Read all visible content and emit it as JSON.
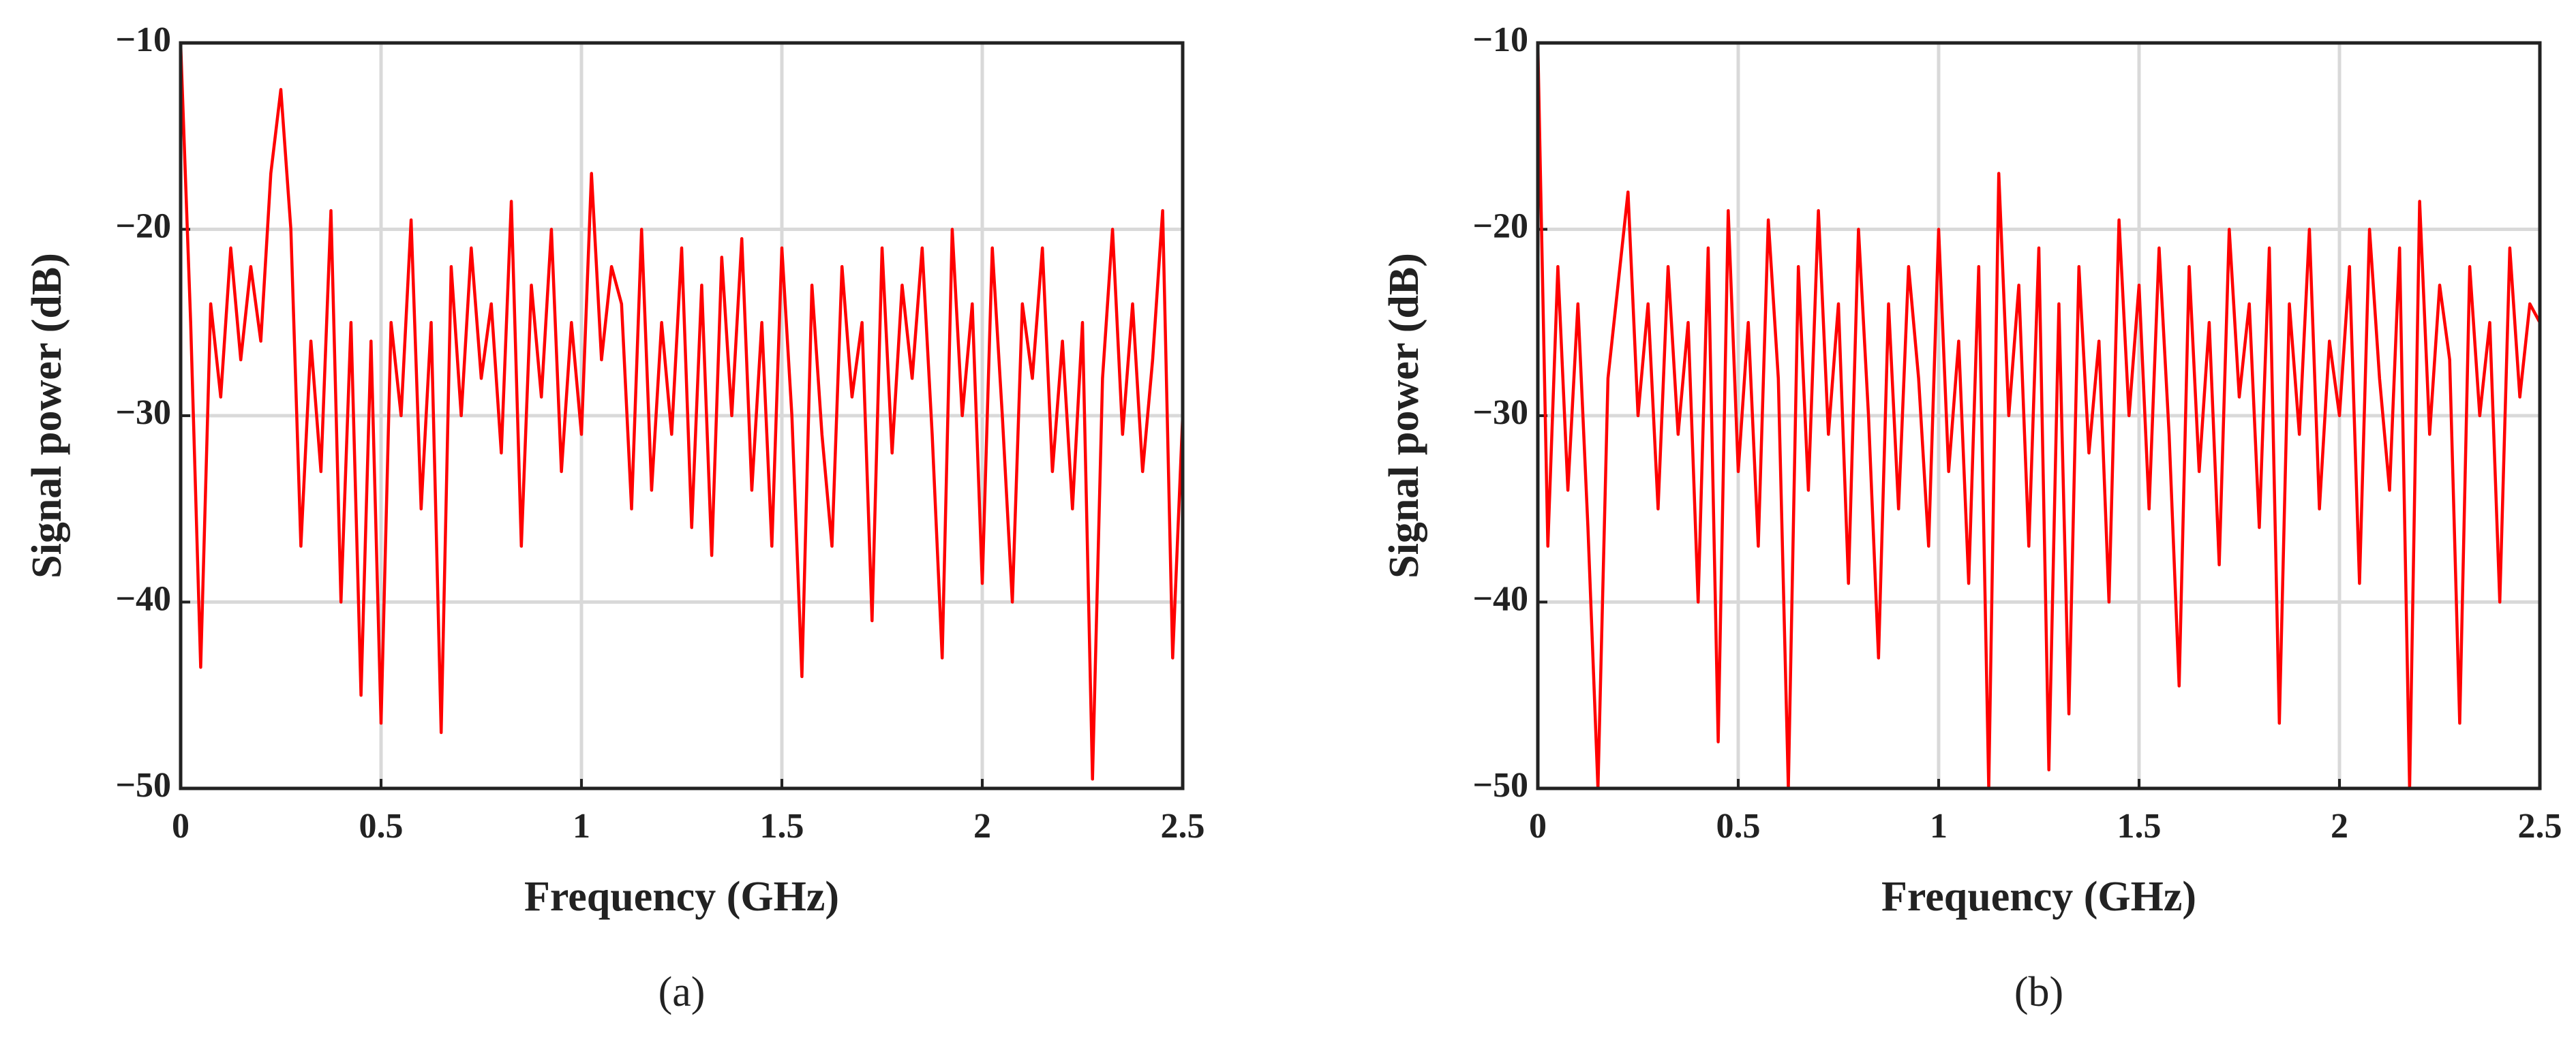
{
  "chart_data": [
    {
      "type": "line",
      "caption": "(a)",
      "x_label": "Frequency (GHz)",
      "y_label": "Signal power (dB)",
      "color": "#ff0000",
      "grid": true,
      "xlim": [
        0,
        2.5
      ],
      "xticks": [
        0,
        0.5,
        1,
        1.5,
        2,
        2.5
      ],
      "ylim": [
        -50,
        -10
      ],
      "yticks": [
        {
          "value": -50,
          "label": "−50"
        },
        {
          "value": -40,
          "label": "−40"
        },
        {
          "value": -30,
          "label": "−30"
        },
        {
          "value": -20,
          "label": "−20"
        },
        {
          "value": -10,
          "label": "−10"
        }
      ],
      "x": [
        0,
        0.025,
        0.05,
        0.075,
        0.1,
        0.125,
        0.15,
        0.175,
        0.2,
        0.225,
        0.25,
        0.275,
        0.3,
        0.325,
        0.35,
        0.375,
        0.4,
        0.425,
        0.45,
        0.475,
        0.5,
        0.525,
        0.55,
        0.575,
        0.6,
        0.625,
        0.65,
        0.675,
        0.7,
        0.725,
        0.75,
        0.775,
        0.8,
        0.825,
        0.85,
        0.875,
        0.9,
        0.925,
        0.95,
        0.975,
        1,
        1.025,
        1.05,
        1.075,
        1.1,
        1.125,
        1.15,
        1.175,
        1.2,
        1.225,
        1.25,
        1.275,
        1.3,
        1.325,
        1.35,
        1.375,
        1.4,
        1.425,
        1.45,
        1.475,
        1.5,
        1.525,
        1.55,
        1.575,
        1.6,
        1.625,
        1.65,
        1.675,
        1.7,
        1.725,
        1.75,
        1.775,
        1.8,
        1.825,
        1.85,
        1.875,
        1.9,
        1.925,
        1.95,
        1.975,
        2,
        2.025,
        2.05,
        2.075,
        2.1,
        2.125,
        2.15,
        2.175,
        2.2,
        2.225,
        2.25,
        2.275,
        2.3,
        2.325,
        2.35,
        2.375,
        2.4,
        2.425,
        2.45,
        2.475,
        2.5
      ],
      "values": [
        -10,
        -25,
        -43.5,
        -24,
        -29,
        -21,
        -27,
        -22,
        -26,
        -17,
        -12.5,
        -20,
        -37,
        -26,
        -33,
        -19,
        -40,
        -25,
        -45,
        -26,
        -46.5,
        -25,
        -30,
        -19.5,
        -35,
        -25,
        -47,
        -22,
        -30,
        -21,
        -28,
        -24,
        -32,
        -18.5,
        -37,
        -23,
        -29,
        -20,
        -33,
        -25,
        -31,
        -17,
        -27,
        -22,
        -24,
        -35,
        -20,
        -34,
        -25,
        -31,
        -21,
        -36,
        -23,
        -37.5,
        -21.5,
        -30,
        -20.5,
        -34,
        -25,
        -37,
        -21,
        -30,
        -44,
        -23,
        -31,
        -37,
        -22,
        -29,
        -25,
        -41,
        -21,
        -32,
        -23,
        -28,
        -21,
        -31,
        -43,
        -20,
        -30,
        -24,
        -39,
        -21,
        -30,
        -40,
        -24,
        -28,
        -21,
        -33,
        -26,
        -35,
        -25,
        -49.5,
        -28,
        -20,
        -31,
        -24,
        -33,
        -27,
        -19,
        -43,
        -30
      ]
    },
    {
      "type": "line",
      "caption": "(b)",
      "x_label": "Frequency (GHz)",
      "y_label": "Signal power (dB)",
      "color": "#ff0000",
      "grid": true,
      "xlim": [
        0,
        2.5
      ],
      "xticks": [
        0,
        0.5,
        1,
        1.5,
        2,
        2.5
      ],
      "ylim": [
        -50,
        -10
      ],
      "yticks": [
        {
          "value": -50,
          "label": "−50"
        },
        {
          "value": -40,
          "label": "−40"
        },
        {
          "value": -30,
          "label": "−30"
        },
        {
          "value": -20,
          "label": "−20"
        },
        {
          "value": -10,
          "label": "−10"
        }
      ],
      "x": [
        0,
        0.025,
        0.05,
        0.075,
        0.1,
        0.125,
        0.15,
        0.175,
        0.2,
        0.225,
        0.25,
        0.275,
        0.3,
        0.325,
        0.35,
        0.375,
        0.4,
        0.425,
        0.45,
        0.475,
        0.5,
        0.525,
        0.55,
        0.575,
        0.6,
        0.625,
        0.65,
        0.675,
        0.7,
        0.725,
        0.75,
        0.775,
        0.8,
        0.825,
        0.85,
        0.875,
        0.9,
        0.925,
        0.95,
        0.975,
        1,
        1.025,
        1.05,
        1.075,
        1.1,
        1.125,
        1.15,
        1.175,
        1.2,
        1.225,
        1.25,
        1.275,
        1.3,
        1.325,
        1.35,
        1.375,
        1.4,
        1.425,
        1.45,
        1.475,
        1.5,
        1.525,
        1.55,
        1.575,
        1.6,
        1.625,
        1.65,
        1.675,
        1.7,
        1.725,
        1.75,
        1.775,
        1.8,
        1.825,
        1.85,
        1.875,
        1.9,
        1.925,
        1.95,
        1.975,
        2,
        2.025,
        2.05,
        2.075,
        2.1,
        2.125,
        2.15,
        2.175,
        2.2,
        2.225,
        2.25,
        2.275,
        2.3,
        2.325,
        2.35,
        2.375,
        2.4,
        2.425,
        2.45,
        2.475,
        2.5
      ],
      "values": [
        -10,
        -37,
        -22,
        -34,
        -24,
        -36,
        -50,
        -28,
        -23,
        -18,
        -30,
        -24,
        -35,
        -22,
        -31,
        -25,
        -40,
        -21,
        -47.5,
        -19,
        -33,
        -25,
        -37,
        -19.5,
        -28,
        -50,
        -22,
        -34,
        -19,
        -31,
        -24,
        -39,
        -20,
        -30,
        -43,
        -24,
        -35,
        -22,
        -28,
        -37,
        -20,
        -33,
        -26,
        -39,
        -22,
        -50,
        -17,
        -30,
        -23,
        -37,
        -21,
        -49,
        -24,
        -46,
        -22,
        -32,
        -26,
        -40,
        -19.5,
        -30,
        -23,
        -35,
        -21,
        -31,
        -44.5,
        -22,
        -33,
        -25,
        -38,
        -20,
        -29,
        -24,
        -36,
        -21,
        -46.5,
        -24,
        -31,
        -20,
        -35,
        -26,
        -30,
        -22,
        -39,
        -20,
        -28,
        -34,
        -21,
        -50,
        -18.5,
        -31,
        -23,
        -27,
        -46.5,
        -22,
        -30,
        -25,
        -40,
        -21,
        -29,
        -24,
        -25
      ]
    }
  ]
}
